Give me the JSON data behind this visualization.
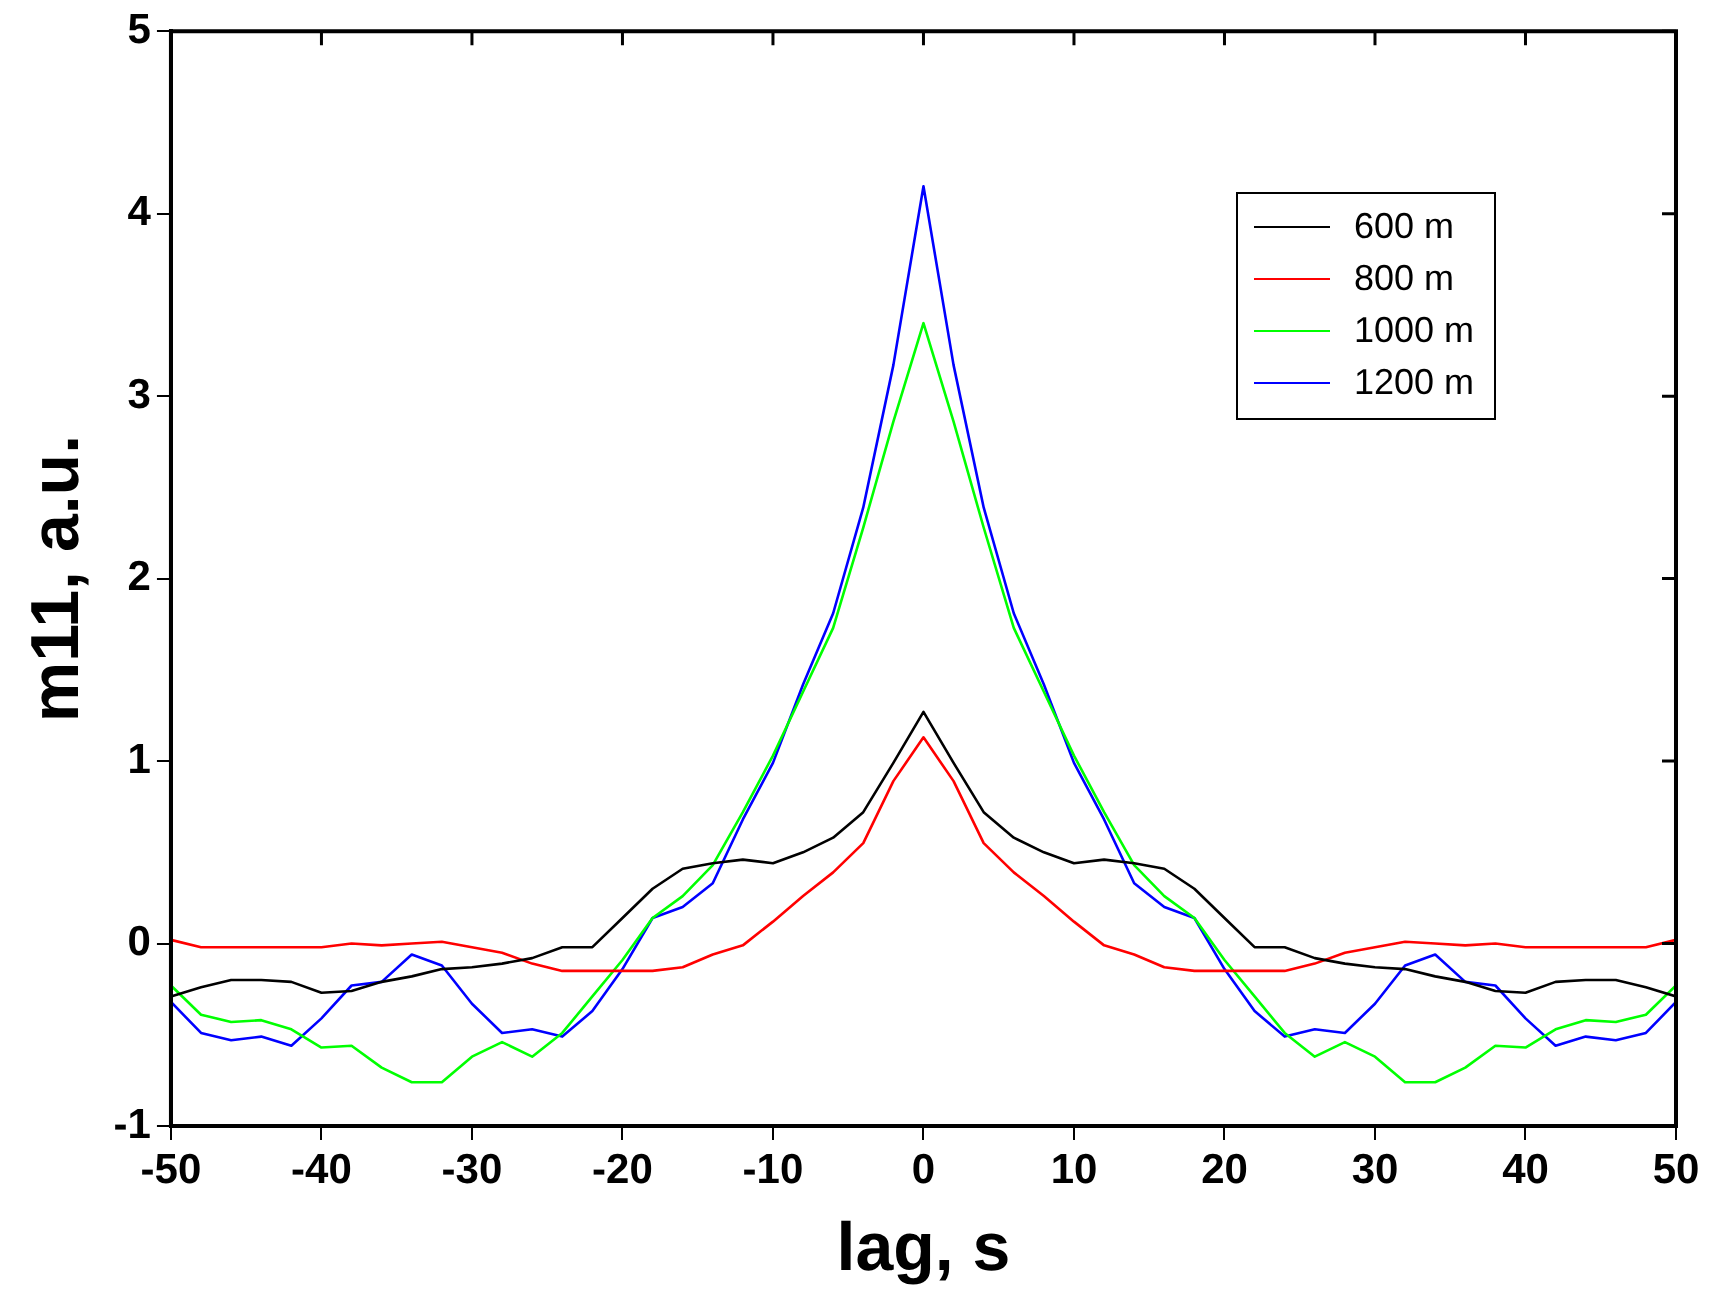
{
  "chart_data": {
    "type": "line",
    "xlabel": "lag, s",
    "ylabel": "m11, a.u.",
    "x": [
      -50,
      -48,
      -46,
      -44,
      -42,
      -40,
      -38,
      -36,
      -34,
      -32,
      -30,
      -28,
      -26,
      -24,
      -22,
      -20,
      -18,
      -16,
      -14,
      -12,
      -10,
      -8,
      -6,
      -4,
      -2,
      0,
      2,
      4,
      6,
      8,
      10,
      12,
      14,
      16,
      18,
      20,
      22,
      24,
      26,
      28,
      30,
      32,
      34,
      36,
      38,
      40,
      42,
      44,
      46,
      48,
      50
    ],
    "series": [
      {
        "name": "600 m",
        "color": "#000000",
        "values": [
          -0.29,
          -0.24,
          -0.2,
          -0.2,
          -0.21,
          -0.27,
          -0.26,
          -0.21,
          -0.18,
          -0.14,
          -0.13,
          -0.11,
          -0.08,
          -0.02,
          -0.02,
          0.14,
          0.3,
          0.41,
          0.44,
          0.46,
          0.44,
          0.5,
          0.58,
          0.72,
          0.99,
          1.27,
          0.99,
          0.72,
          0.58,
          0.5,
          0.44,
          0.46,
          0.44,
          0.41,
          0.3,
          0.14,
          -0.02,
          -0.02,
          -0.08,
          -0.11,
          -0.13,
          -0.14,
          -0.18,
          -0.21,
          -0.26,
          -0.27,
          -0.21,
          -0.2,
          -0.2,
          -0.24,
          -0.29
        ]
      },
      {
        "name": "800 m",
        "color": "#ff0000",
        "values": [
          0.02,
          -0.02,
          -0.02,
          -0.02,
          -0.02,
          -0.02,
          0.0,
          -0.01,
          0.0,
          0.01,
          -0.02,
          -0.05,
          -0.11,
          -0.15,
          -0.15,
          -0.15,
          -0.15,
          -0.13,
          -0.06,
          -0.01,
          0.12,
          0.26,
          0.39,
          0.55,
          0.89,
          1.13,
          0.89,
          0.55,
          0.39,
          0.26,
          0.12,
          -0.01,
          -0.06,
          -0.13,
          -0.15,
          -0.15,
          -0.15,
          -0.15,
          -0.11,
          -0.05,
          -0.02,
          0.01,
          0.0,
          -0.01,
          0.0,
          -0.02,
          -0.02,
          -0.02,
          -0.02,
          -0.02,
          0.02
        ]
      },
      {
        "name": "1000 m",
        "color": "#00ff00",
        "values": [
          -0.23,
          -0.39,
          -0.43,
          -0.42,
          -0.47,
          -0.57,
          -0.56,
          -0.68,
          -0.76,
          -0.76,
          -0.62,
          -0.54,
          -0.62,
          -0.49,
          -0.29,
          -0.09,
          0.14,
          0.26,
          0.43,
          0.72,
          1.03,
          1.38,
          1.73,
          2.28,
          2.86,
          3.4,
          2.86,
          2.28,
          1.73,
          1.38,
          1.03,
          0.72,
          0.43,
          0.26,
          0.14,
          -0.09,
          -0.29,
          -0.49,
          -0.62,
          -0.54,
          -0.62,
          -0.76,
          -0.76,
          -0.68,
          -0.56,
          -0.57,
          -0.47,
          -0.42,
          -0.43,
          -0.39,
          -0.23
        ]
      },
      {
        "name": "1200 m",
        "color": "#0000ff",
        "values": [
          -0.32,
          -0.49,
          -0.53,
          -0.51,
          -0.56,
          -0.41,
          -0.23,
          -0.21,
          -0.06,
          -0.12,
          -0.33,
          -0.49,
          -0.47,
          -0.51,
          -0.37,
          -0.14,
          0.14,
          0.2,
          0.33,
          0.68,
          0.99,
          1.42,
          1.81,
          2.39,
          3.17,
          4.15,
          3.17,
          2.39,
          1.81,
          1.42,
          0.99,
          0.68,
          0.33,
          0.2,
          0.14,
          -0.14,
          -0.37,
          -0.51,
          -0.47,
          -0.49,
          -0.33,
          -0.12,
          -0.06,
          -0.21,
          -0.23,
          -0.41,
          -0.56,
          -0.51,
          -0.53,
          -0.49,
          -0.32
        ]
      }
    ],
    "xlim": [
      -50,
      50
    ],
    "xticks": [
      -50,
      -40,
      -30,
      -20,
      -10,
      0,
      10,
      20,
      30,
      40,
      50
    ],
    "ylim": [
      -1,
      5
    ],
    "yticks": [
      -1,
      0,
      1,
      2,
      3,
      4,
      5
    ],
    "grid": false,
    "legend": "top right",
    "marker": "none",
    "line_style": "solid"
  }
}
